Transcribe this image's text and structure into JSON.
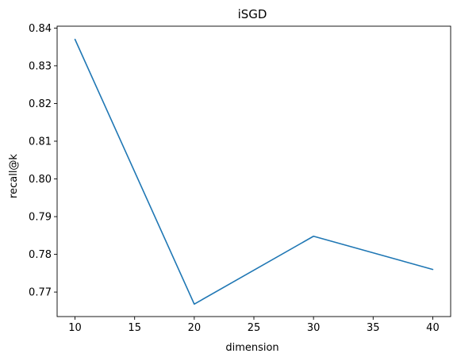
{
  "chart_data": {
    "type": "line",
    "title": "iSGD",
    "xlabel": "dimension",
    "ylabel": "recall@k",
    "x": [
      10,
      20,
      30,
      40
    ],
    "series": [
      {
        "values": [
          0.837,
          0.7668,
          0.7848,
          0.776
        ],
        "color": "#1f77b4"
      }
    ],
    "xlim": [
      8.5,
      41.5
    ],
    "ylim": [
      0.7635,
      0.8405
    ],
    "xticks": [
      10,
      15,
      20,
      25,
      30,
      35,
      40
    ],
    "xtick_labels": [
      "10",
      "15",
      "20",
      "25",
      "30",
      "35",
      "40"
    ],
    "yticks": [
      0.77,
      0.78,
      0.79,
      0.8,
      0.81,
      0.82,
      0.83,
      0.84
    ],
    "ytick_labels": [
      "0.77",
      "0.78",
      "0.79",
      "0.80",
      "0.81",
      "0.82",
      "0.83",
      "0.84"
    ],
    "grid": false,
    "legend": false
  }
}
